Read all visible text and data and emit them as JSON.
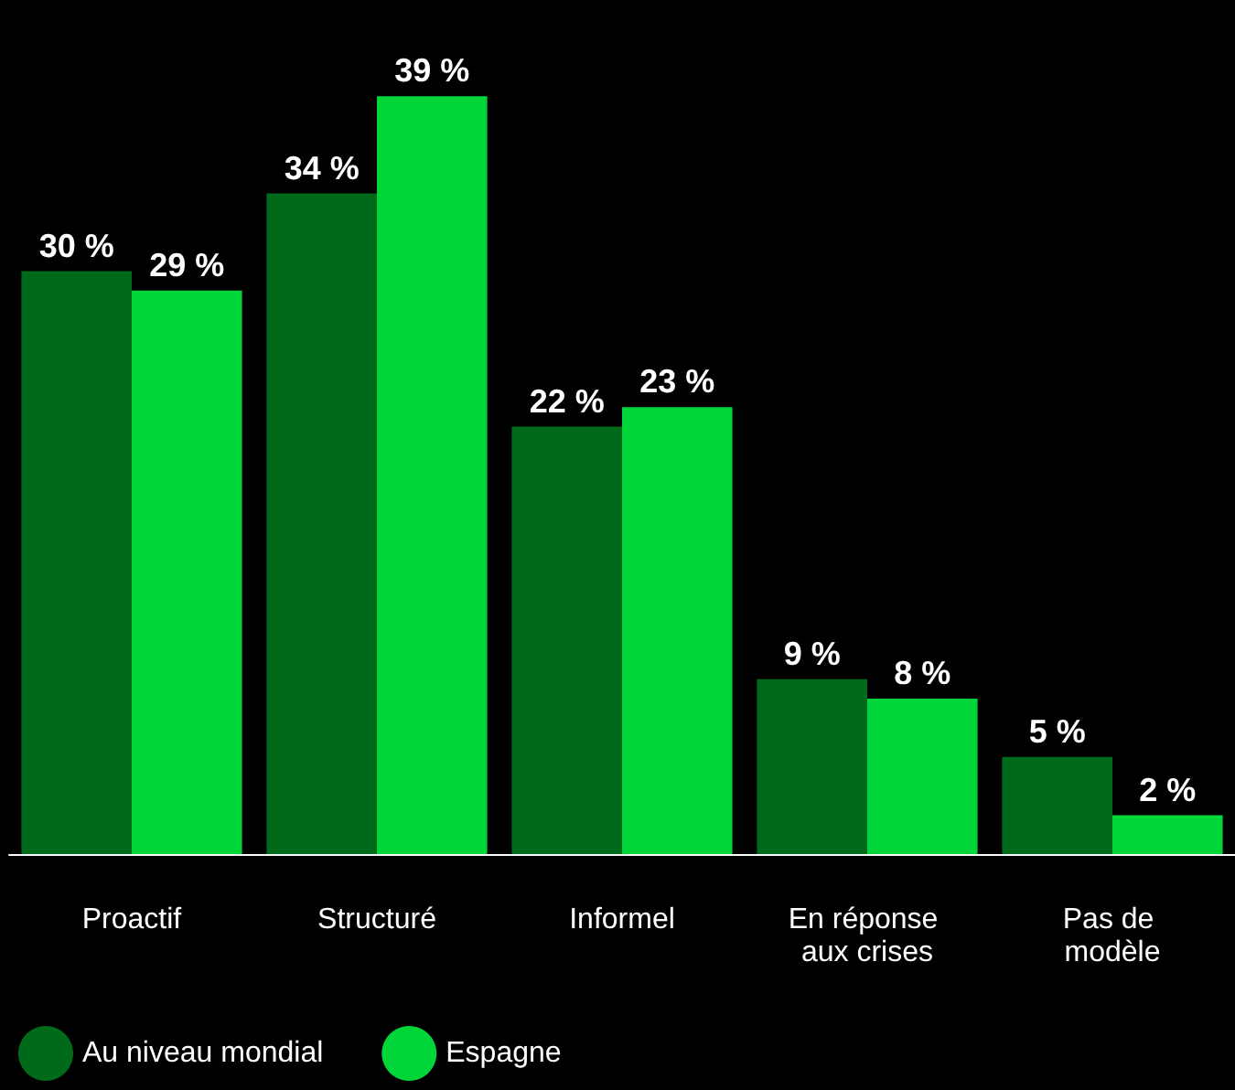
{
  "chart_data": {
    "type": "bar",
    "categories": [
      "Proactif",
      "Structuré",
      "Informel",
      "En réponse aux crises",
      "Pas de modèle"
    ],
    "series": [
      {
        "name": "Au niveau mondial",
        "color": "#006a1b",
        "values": [
          30,
          34,
          22,
          9,
          5
        ],
        "value_labels": [
          "30 %",
          "34 %",
          "22 %",
          "9 %",
          "5 %"
        ]
      },
      {
        "name": "Espagne",
        "color": "#00d53a",
        "values": [
          29,
          39,
          23,
          8,
          2
        ],
        "value_labels": [
          "29 %",
          "39 %",
          "23 %",
          "8 %",
          "2 %"
        ]
      }
    ],
    "legend": "bottom left"
  }
}
